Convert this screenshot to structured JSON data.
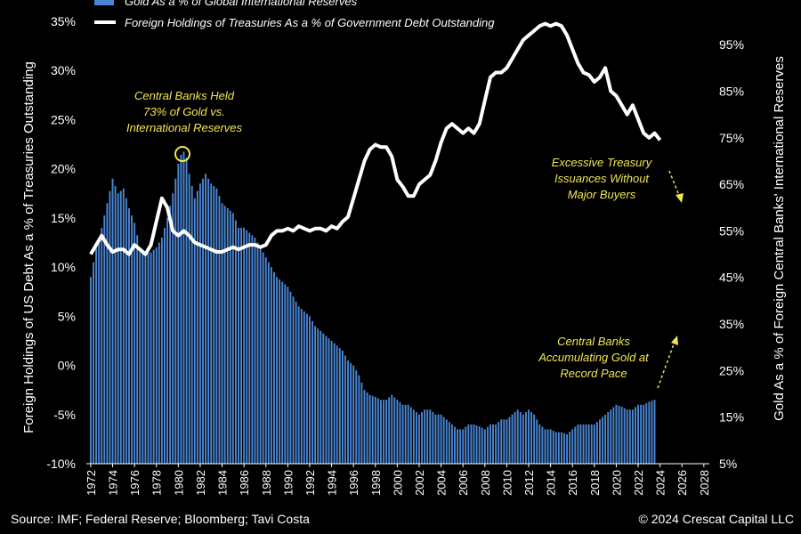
{
  "chart_data": {
    "type": "bar+line",
    "legend": {
      "bar_series": "Gold As a % of Global International Reserves",
      "line_series": "Foreign Holdings of Treasuries As a % of Government Debt Outstanding"
    },
    "left_axis": {
      "label": "Foreign Holdings of US Debt As a % of Treasuries Outstanding",
      "ticks": [
        "35%",
        "30%",
        "25%",
        "20%",
        "15%",
        "10%",
        "5%",
        "0%",
        "-5%",
        "-10%"
      ],
      "range": [
        -10,
        35
      ]
    },
    "right_axis": {
      "label": "Gold As a % of Foreign Central Banks' International Reserves",
      "ticks": [
        "95%",
        "85%",
        "75%",
        "65%",
        "55%",
        "45%",
        "35%",
        "25%",
        "15%",
        "5%"
      ],
      "range": [
        5,
        100
      ]
    },
    "x_ticks": [
      "1972",
      "1974",
      "1976",
      "1978",
      "1980",
      "1982",
      "1984",
      "1986",
      "1988",
      "1990",
      "1992",
      "1994",
      "1996",
      "1998",
      "2000",
      "2002",
      "2004",
      "2006",
      "2008",
      "2010",
      "2012",
      "2014",
      "2016",
      "2018",
      "2020",
      "2022",
      "2024",
      "2026",
      "2028"
    ],
    "x_range": [
      1971.6,
      2028.5
    ],
    "gold_reserves_pct": {
      "unit": "percent (left axis scale)",
      "points": [
        [
          1972,
          9
        ],
        [
          1972.5,
          12
        ],
        [
          1973,
          14
        ],
        [
          1973.5,
          16.5
        ],
        [
          1974,
          19
        ],
        [
          1974.5,
          17.5
        ],
        [
          1975,
          18
        ],
        [
          1975.5,
          16
        ],
        [
          1976,
          14.5
        ],
        [
          1976.5,
          12
        ],
        [
          1977,
          11.5
        ],
        [
          1977.5,
          11.5
        ],
        [
          1978,
          12
        ],
        [
          1978.5,
          13
        ],
        [
          1979,
          15
        ],
        [
          1979.5,
          17.5
        ],
        [
          1980,
          20.5
        ],
        [
          1980.4,
          22
        ],
        [
          1980.8,
          21
        ],
        [
          1981,
          19.5
        ],
        [
          1981.5,
          17
        ],
        [
          1982,
          18.5
        ],
        [
          1982.5,
          19.5
        ],
        [
          1983,
          18.5
        ],
        [
          1983.5,
          18
        ],
        [
          1984,
          16.5
        ],
        [
          1984.5,
          16
        ],
        [
          1985,
          15.5
        ],
        [
          1985.5,
          14
        ],
        [
          1986,
          14
        ],
        [
          1986.5,
          13.5
        ],
        [
          1987,
          13
        ],
        [
          1987.5,
          12
        ],
        [
          1988,
          11
        ],
        [
          1988.5,
          10
        ],
        [
          1989,
          9
        ],
        [
          1989.5,
          8.5
        ],
        [
          1990,
          8
        ],
        [
          1990.5,
          7
        ],
        [
          1991,
          6
        ],
        [
          1991.5,
          5.5
        ],
        [
          1992,
          5
        ],
        [
          1992.5,
          4
        ],
        [
          1993,
          3.5
        ],
        [
          1993.5,
          3
        ],
        [
          1994,
          2.5
        ],
        [
          1994.5,
          2
        ],
        [
          1995,
          1.5
        ],
        [
          1995.5,
          0.5
        ],
        [
          1996,
          0
        ],
        [
          1996.5,
          -1
        ],
        [
          1997,
          -2.5
        ],
        [
          1997.5,
          -3
        ],
        [
          1998,
          -3.2
        ],
        [
          1998.5,
          -3.5
        ],
        [
          1999,
          -3.5
        ],
        [
          1999.5,
          -3
        ],
        [
          2000,
          -3.5
        ],
        [
          2000.5,
          -4
        ],
        [
          2001,
          -4
        ],
        [
          2001.5,
          -4.5
        ],
        [
          2002,
          -5
        ],
        [
          2002.5,
          -4.5
        ],
        [
          2003,
          -4.5
        ],
        [
          2003.5,
          -5
        ],
        [
          2004,
          -5
        ],
        [
          2004.5,
          -5.5
        ],
        [
          2005,
          -6
        ],
        [
          2005.5,
          -6.5
        ],
        [
          2006,
          -6.5
        ],
        [
          2006.5,
          -6
        ],
        [
          2007,
          -6
        ],
        [
          2007.5,
          -6.2
        ],
        [
          2008,
          -6.5
        ],
        [
          2008.5,
          -6
        ],
        [
          2009,
          -6
        ],
        [
          2009.5,
          -5.5
        ],
        [
          2010,
          -5.5
        ],
        [
          2010.5,
          -5
        ],
        [
          2011,
          -4.5
        ],
        [
          2011.5,
          -5
        ],
        [
          2012,
          -4.5
        ],
        [
          2012.5,
          -5
        ],
        [
          2013,
          -6
        ],
        [
          2013.5,
          -6.5
        ],
        [
          2014,
          -6.5
        ],
        [
          2014.5,
          -6.8
        ],
        [
          2015,
          -6.8
        ],
        [
          2015.5,
          -7
        ],
        [
          2016,
          -6.5
        ],
        [
          2016.5,
          -6
        ],
        [
          2017,
          -6
        ],
        [
          2017.5,
          -6
        ],
        [
          2018,
          -6
        ],
        [
          2018.5,
          -5.5
        ],
        [
          2019,
          -5
        ],
        [
          2019.5,
          -4.5
        ],
        [
          2020,
          -4
        ],
        [
          2020.5,
          -4.2
        ],
        [
          2021,
          -4.5
        ],
        [
          2021.5,
          -4.5
        ],
        [
          2022,
          -4
        ],
        [
          2022.5,
          -4
        ],
        [
          2023,
          -3.7
        ],
        [
          2023.5,
          -3.5
        ]
      ]
    },
    "foreign_holdings_pct": {
      "unit": "percent (right axis scale)",
      "points": [
        [
          1972,
          50
        ],
        [
          1972.5,
          52
        ],
        [
          1973,
          54
        ],
        [
          1973.5,
          52
        ],
        [
          1974,
          50.5
        ],
        [
          1974.5,
          51
        ],
        [
          1975,
          51
        ],
        [
          1975.5,
          50
        ],
        [
          1976,
          52
        ],
        [
          1976.5,
          51
        ],
        [
          1977,
          50
        ],
        [
          1977.5,
          52
        ],
        [
          1978,
          57
        ],
        [
          1978.5,
          62
        ],
        [
          1979,
          60
        ],
        [
          1979.5,
          55
        ],
        [
          1980,
          54
        ],
        [
          1980.5,
          55
        ],
        [
          1981,
          54
        ],
        [
          1981.5,
          52.5
        ],
        [
          1982,
          52
        ],
        [
          1982.5,
          51.5
        ],
        [
          1983,
          51
        ],
        [
          1983.5,
          50.5
        ],
        [
          1984,
          50.5
        ],
        [
          1984.5,
          51
        ],
        [
          1985,
          51.5
        ],
        [
          1985.5,
          51
        ],
        [
          1986,
          51.5
        ],
        [
          1986.5,
          52
        ],
        [
          1987,
          52
        ],
        [
          1987.5,
          51.5
        ],
        [
          1988,
          52
        ],
        [
          1988.5,
          54
        ],
        [
          1989,
          55
        ],
        [
          1989.5,
          55
        ],
        [
          1990,
          55.5
        ],
        [
          1990.5,
          55
        ],
        [
          1991,
          56
        ],
        [
          1991.5,
          55.5
        ],
        [
          1992,
          55
        ],
        [
          1992.5,
          55.5
        ],
        [
          1993,
          55.5
        ],
        [
          1993.5,
          55
        ],
        [
          1994,
          56
        ],
        [
          1994.5,
          55.5
        ],
        [
          1995,
          57
        ],
        [
          1995.5,
          58
        ],
        [
          1996,
          62
        ],
        [
          1996.5,
          66
        ],
        [
          1997,
          70
        ],
        [
          1997.5,
          72.5
        ],
        [
          1998,
          73.5
        ],
        [
          1998.5,
          73
        ],
        [
          1999,
          73
        ],
        [
          1999.5,
          71
        ],
        [
          2000,
          66
        ],
        [
          2000.5,
          64.5
        ],
        [
          2001,
          62.5
        ],
        [
          2001.5,
          62.5
        ],
        [
          2002,
          65
        ],
        [
          2002.5,
          66
        ],
        [
          2003,
          67
        ],
        [
          2003.5,
          70
        ],
        [
          2004,
          74
        ],
        [
          2004.5,
          77
        ],
        [
          2005,
          78
        ],
        [
          2005.5,
          77
        ],
        [
          2006,
          76
        ],
        [
          2006.5,
          77
        ],
        [
          2007,
          76
        ],
        [
          2007.5,
          78
        ],
        [
          2008,
          83
        ],
        [
          2008.5,
          88
        ],
        [
          2009,
          89
        ],
        [
          2009.5,
          89
        ],
        [
          2010,
          90
        ],
        [
          2010.5,
          92
        ],
        [
          2011,
          94
        ],
        [
          2011.5,
          96
        ],
        [
          2012,
          97
        ],
        [
          2012.5,
          98
        ],
        [
          2013,
          99
        ],
        [
          2013.5,
          99.5
        ],
        [
          2014,
          99
        ],
        [
          2014.5,
          99.5
        ],
        [
          2015,
          99
        ],
        [
          2015.5,
          97
        ],
        [
          2016,
          94
        ],
        [
          2016.5,
          91
        ],
        [
          2017,
          89
        ],
        [
          2017.5,
          88.5
        ],
        [
          2018,
          87
        ],
        [
          2018.5,
          88
        ],
        [
          2019,
          90
        ],
        [
          2019.5,
          85
        ],
        [
          2020,
          84
        ],
        [
          2020.5,
          82
        ],
        [
          2021,
          80
        ],
        [
          2021.5,
          82
        ],
        [
          2022,
          79
        ],
        [
          2022.5,
          76
        ],
        [
          2023,
          75
        ],
        [
          2023.5,
          76
        ],
        [
          2024,
          74.5
        ]
      ]
    },
    "annotations": {
      "peak_1980": [
        "Central Banks Held",
        "73% of Gold vs.",
        "International Reserves"
      ],
      "treasury": [
        "Excessive Treasury",
        "Issuances Without",
        "Major Buyers"
      ],
      "gold_buying": [
        "Central Banks",
        "Accumulating Gold at",
        "Record Pace"
      ]
    },
    "source": "Source: IMF; Federal Reserve; Bloomberg; Tavi Costa",
    "copyright": "© 2024 Crescat Capital LLC",
    "colors": {
      "background": "#000000",
      "bars": "#4a86d4",
      "line": "#ffffff",
      "annotation": "#f2e84e"
    }
  }
}
